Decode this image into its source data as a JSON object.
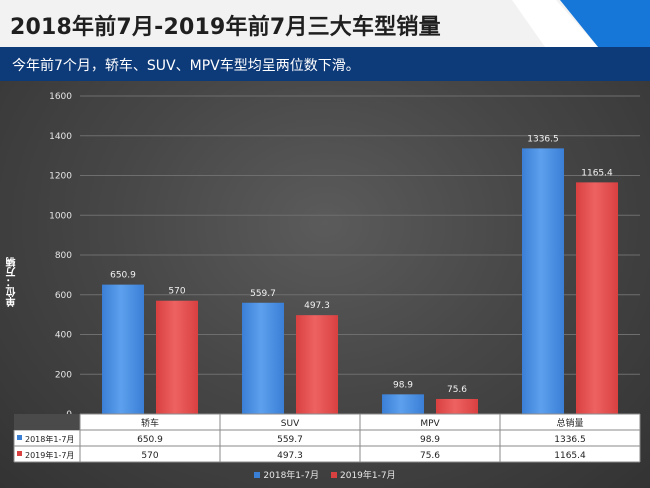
{
  "header": {
    "title": "2018年前7月-2019年前7月三大车型销量",
    "accent_color": "#1677d8"
  },
  "subheader": {
    "text": "今年前7个月，轿车、SUV、MPV车型均呈两位数下滑。",
    "background": "#0d3a79"
  },
  "chart_data": {
    "type": "bar",
    "categories": [
      "轿车",
      "SUV",
      "MPV",
      "总销量"
    ],
    "series": [
      {
        "name": "2018年1-7月",
        "values": [
          650.9,
          559.7,
          98.9,
          1336.5
        ],
        "labels": [
          "650.9",
          "559.7",
          "98.9",
          "1336.5"
        ],
        "color": "#3a7fd6"
      },
      {
        "name": "2019年1-7月",
        "values": [
          570,
          497.3,
          75.6,
          1165.4
        ],
        "labels": [
          "570",
          "497.3",
          "75.6",
          "1165.4"
        ],
        "color": "#d94040"
      }
    ],
    "ylabel": "单位：万辆",
    "ylim": [
      0,
      1600
    ],
    "yticks": [
      0,
      200,
      400,
      600,
      800,
      1000,
      1200,
      1400,
      1600
    ],
    "grid": true,
    "data_table": true,
    "legend_position": "bottom"
  }
}
